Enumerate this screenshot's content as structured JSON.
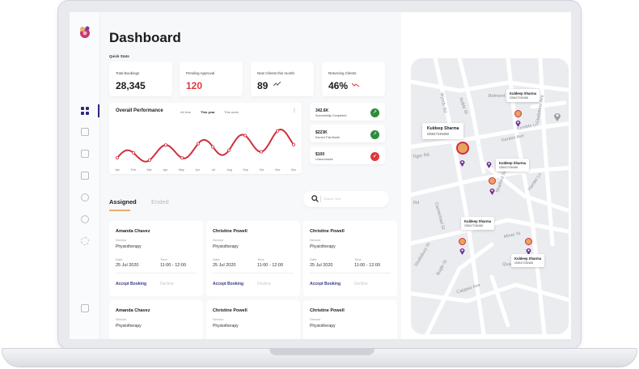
{
  "dashboard": {
    "title": "Dashboard",
    "quick_stats_label": "Quick Stats",
    "stats": [
      {
        "label": "Total Bookings",
        "value": "28,345",
        "color": "#1b1b1f"
      },
      {
        "label": "Pending Approval",
        "value": "120",
        "color": "#e0363b"
      },
      {
        "label": "New Clients this month",
        "value": "89",
        "color": "#1b1b1f",
        "trend": "up"
      },
      {
        "label": "Returning Clients",
        "value": "46%",
        "color": "#1b1b1f",
        "trend": "down"
      }
    ],
    "performance": {
      "title": "Overall Performance",
      "tabs": [
        "All time",
        "This year",
        "This week"
      ],
      "active_tab": "This year",
      "months": [
        "Jan",
        "Feb",
        "Mar",
        "Apr",
        "May",
        "Jun",
        "Jul",
        "Aug",
        "Sep",
        "Oct",
        "Nov",
        "Dec"
      ]
    },
    "mini_stats": [
      {
        "value": "342.6K",
        "label": "Successfully Completed",
        "icon": "arrow-up-right-icon",
        "color": "#2e8b3a"
      },
      {
        "value": "$223K",
        "label": "Earned This Month",
        "icon": "arrow-up-right-icon",
        "color": "#2e8b3a"
      },
      {
        "value": "$100",
        "label": "Unsuccessful",
        "icon": "arrow-down-left-icon",
        "color": "#e0363b"
      }
    ],
    "tabs": [
      "Assigned",
      "Ended"
    ],
    "active_tab": "Assigned",
    "search_placeholder": "Search Text",
    "bookings": [
      {
        "name": "Amanda Chavez",
        "service_label": "Service",
        "service": "Physiotherapy",
        "date_label": "Date",
        "date": "25 Jul 2020",
        "time_label": "Time",
        "time": "11:00 - 12:00",
        "accept": "Accept Booking",
        "decline": "Decline"
      },
      {
        "name": "Christine Powell",
        "service_label": "Service",
        "service": "Physiotherapy",
        "date_label": "Date",
        "date": "25 Jul 2020",
        "time_label": "Time",
        "time": "11:00 - 12:00",
        "accept": "Accept Booking",
        "decline": "Decline"
      },
      {
        "name": "Christine Powell",
        "service_label": "Service",
        "service": "Physiotherapy",
        "date_label": "Date",
        "date": "25 Jul 2020",
        "time_label": "Time",
        "time": "11:00 - 12:00",
        "accept": "Accept Booking",
        "decline": "Decline"
      },
      {
        "name": "Amanda Chavez",
        "service_label": "Service",
        "service": "Physiotherapy"
      },
      {
        "name": "Christine Powell",
        "service_label": "Service",
        "service": "Physiotherapy"
      },
      {
        "name": "Christine Powell",
        "service_label": "Service",
        "service": "Physiotherapy"
      }
    ],
    "map": {
      "streets": [
        "Belmont",
        "Wynds Rd",
        "Noble St",
        "Kenton Ave",
        "Gladstone Ave",
        "Kemble Ln",
        "Tiger Rd",
        "Shatford St",
        "Hamlet Ln",
        "Rd",
        "Carmichael St",
        "Miner St",
        "Quarry",
        "Shaftsbury St",
        "Bugle St",
        "Calypso Ave"
      ],
      "popups": [
        {
          "name": "Kuldeep Sharma",
          "phone": "I35647236468"
        },
        {
          "name": "Kuldeep Sharma",
          "phone": "I35647236468"
        },
        {
          "name": "Kuldeep Sharma",
          "phone": "I35647236468"
        },
        {
          "name": "Kuldeep Sharma",
          "phone": "I35647236468"
        },
        {
          "name": "Kuldeep Sharma",
          "phone": "I35647236468"
        }
      ]
    }
  },
  "colors": {
    "accent": "#d0303f",
    "nav": "#2b2b7e",
    "pin": "#6c2b8f",
    "tab_underline": "#e8ae6a"
  }
}
